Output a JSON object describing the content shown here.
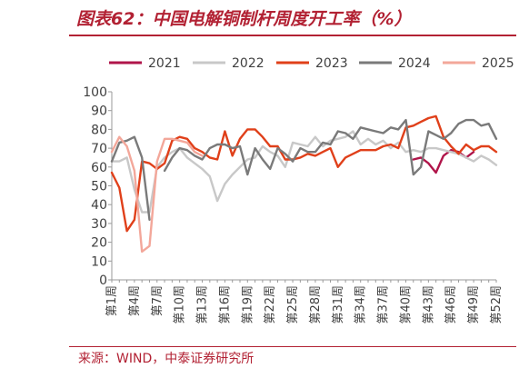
{
  "figure": {
    "title": "图表62：中国电解铜制杆周度开工率（%）",
    "source": "来源：WIND，中泰证券研究所"
  },
  "colors": {
    "accent": "#b22133"
  },
  "chart_data": {
    "type": "line",
    "title": "",
    "xlabel": "",
    "ylabel": "",
    "ylim": [
      0,
      100
    ],
    "yticks": [
      0,
      10,
      20,
      30,
      40,
      50,
      60,
      70,
      80,
      90,
      100
    ],
    "x": [
      1,
      2,
      3,
      4,
      5,
      6,
      7,
      8,
      9,
      10,
      11,
      12,
      13,
      14,
      15,
      16,
      17,
      18,
      19,
      20,
      21,
      22,
      23,
      24,
      25,
      26,
      27,
      28,
      29,
      30,
      31,
      32,
      33,
      34,
      35,
      36,
      37,
      38,
      39,
      40,
      41,
      42,
      43,
      44,
      45,
      46,
      47,
      48,
      49,
      50,
      51,
      52
    ],
    "xtick_labels": [
      "第1周",
      "第4周",
      "第7周",
      "第10周",
      "第13周",
      "第16周",
      "第19周",
      "第22周",
      "第25周",
      "第28周",
      "第31周",
      "第34周",
      "第37周",
      "第40周",
      "第43周",
      "第46周",
      "第49周",
      "第52周"
    ],
    "xtick_weeks": [
      1,
      4,
      7,
      10,
      13,
      16,
      19,
      22,
      25,
      28,
      31,
      34,
      37,
      40,
      43,
      46,
      49,
      52
    ],
    "legend_position": "top",
    "grid": false,
    "series": [
      {
        "name": "2021",
        "color": "#b0154a",
        "values": [
          null,
          null,
          null,
          null,
          null,
          null,
          null,
          null,
          null,
          null,
          null,
          null,
          null,
          null,
          null,
          null,
          null,
          null,
          null,
          null,
          null,
          null,
          null,
          null,
          null,
          null,
          null,
          null,
          null,
          null,
          null,
          null,
          null,
          null,
          null,
          null,
          null,
          null,
          null,
          null,
          64,
          65,
          62,
          57,
          66,
          69,
          68,
          65,
          68,
          null,
          null,
          null
        ]
      },
      {
        "name": "2022",
        "color": "#c8c8c8",
        "values": [
          63,
          63,
          65,
          48,
          36,
          36,
          60,
          65,
          68,
          70,
          65,
          62,
          59,
          55,
          42,
          51,
          56,
          60,
          64,
          65,
          71,
          68,
          66,
          60,
          73,
          72,
          71,
          76,
          71,
          74,
          75,
          76,
          79,
          72,
          75,
          72,
          74,
          70,
          73,
          68,
          69,
          68,
          70,
          70,
          69,
          68,
          67,
          65,
          63,
          66,
          64,
          61
        ]
      },
      {
        "name": "2023",
        "color": "#e0401a",
        "values": [
          57,
          49,
          26,
          32,
          63,
          62,
          59,
          62,
          74,
          76,
          75,
          70,
          68,
          65,
          64,
          79,
          66,
          75,
          80,
          80,
          76,
          71,
          71,
          64,
          64,
          65,
          67,
          66,
          68,
          70,
          60,
          65,
          67,
          69,
          69,
          69,
          71,
          72,
          70,
          81,
          82,
          84,
          86,
          87,
          76,
          71,
          67,
          72,
          69,
          71,
          71,
          68
        ]
      },
      {
        "name": "2024",
        "color": "#7a7a7a",
        "values": [
          63,
          73,
          74,
          76,
          65,
          32,
          null,
          58,
          65,
          70,
          69,
          66,
          64,
          70,
          72,
          72,
          70,
          71,
          56,
          70,
          64,
          59,
          70,
          67,
          63,
          70,
          68,
          68,
          73,
          72,
          79,
          78,
          75,
          81,
          80,
          79,
          78,
          81,
          80,
          85,
          56,
          60,
          79,
          77,
          75,
          78,
          83,
          85,
          85,
          82,
          83,
          75
        ]
      },
      {
        "name": "2025",
        "color": "#f3a79a",
        "values": [
          68,
          76,
          71,
          58,
          15,
          18,
          63,
          75,
          75,
          74,
          73,
          68,
          66,
          null,
          null,
          null,
          null,
          null,
          null,
          null,
          null,
          null,
          null,
          null,
          null,
          null,
          null,
          null,
          null,
          null,
          null,
          null,
          null,
          null,
          null,
          null,
          null,
          null,
          null,
          null,
          null,
          null,
          null,
          null,
          null,
          null,
          null,
          null,
          null,
          null,
          null,
          null
        ]
      }
    ]
  }
}
